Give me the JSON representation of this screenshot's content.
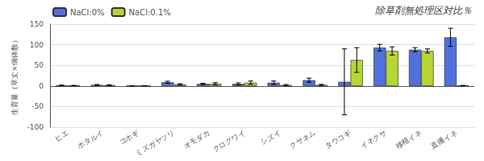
{
  "chart_data": {
    "type": "bar",
    "title": "除草剤無処理区対比％",
    "ylabel": "生育量（草丈×個体数）",
    "categories": [
      "ヒエ",
      "ホタルイ",
      "コホギ",
      "ミズガヤツリ",
      "オモダカ",
      "クログワイ",
      "シズイ",
      "クサネム",
      "タウコギ",
      "イネクサ",
      "移植イネ",
      "直播イネ"
    ],
    "series": [
      {
        "name": "NaCl:0%",
        "values": [
          1.5,
          2.5,
          0.5,
          9.0,
          5.0,
          5.0,
          8.0,
          14.0,
          10.0,
          93.0,
          88.0,
          118.0
        ],
        "errors": [
          0.5,
          1.0,
          0.2,
          2.5,
          1.5,
          2.5,
          4.0,
          5.0,
          80.0,
          8.0,
          5.0,
          22.0
        ]
      },
      {
        "name": "NaCl:0.1%",
        "values": [
          1.0,
          2.0,
          0.5,
          4.0,
          5.5,
          8.0,
          2.0,
          2.5,
          63.0,
          85.0,
          85.0,
          1.0
        ],
        "errors": [
          0.5,
          1.0,
          0.2,
          1.5,
          2.5,
          4.0,
          1.5,
          1.5,
          30.0,
          10.0,
          5.0,
          0.5
        ]
      }
    ],
    "ylim": [
      -100,
      150
    ],
    "yticks": [
      -100,
      -50,
      0,
      50,
      100,
      150
    ],
    "grid": true,
    "legend": "upper left"
  }
}
